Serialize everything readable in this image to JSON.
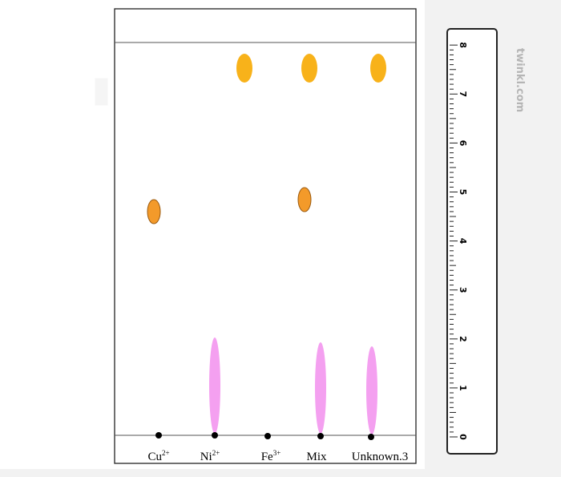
{
  "lanes": [
    {
      "label": "Cu",
      "sup": "2+"
    },
    {
      "label": "Ni",
      "sup": "2+"
    },
    {
      "label": "Fe",
      "sup": "3+"
    },
    {
      "label": "Mix"
    },
    {
      "label": "Unknown.3"
    }
  ],
  "ruler": {
    "labels": [
      "0",
      "1",
      "2",
      "3",
      "4",
      "5",
      "6",
      "7",
      "8"
    ]
  },
  "watermark": "twinkl.com"
}
